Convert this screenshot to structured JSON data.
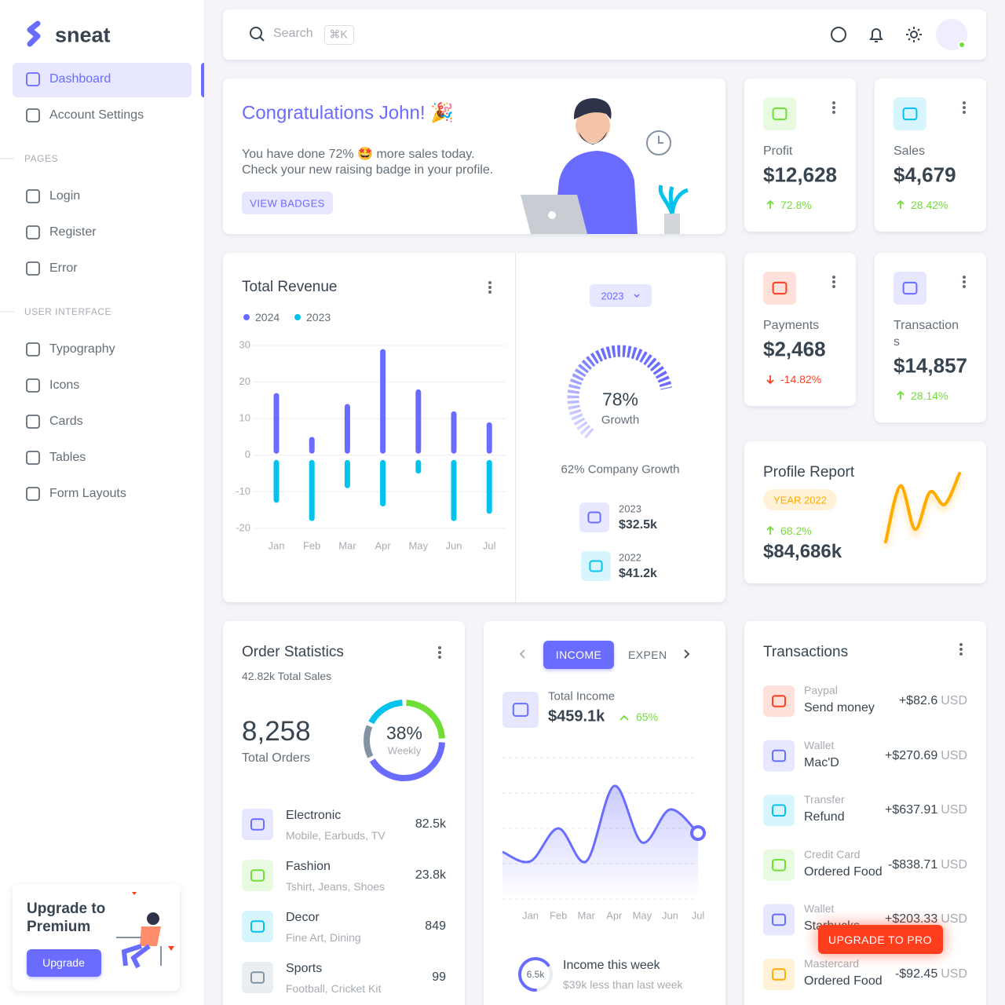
{
  "brand": "sneat",
  "menu": {
    "main": [
      "Dashboard",
      "Account Settings"
    ],
    "pages_header": "PAGES",
    "pages": [
      "Login",
      "Register",
      "Error"
    ],
    "ui_header": "USER INTERFACE",
    "ui": [
      "Typography",
      "Icons",
      "Cards",
      "Tables",
      "Form Layouts"
    ]
  },
  "upgrade": {
    "title": "Upgrade to Premium",
    "button": "Upgrade"
  },
  "search": {
    "placeholder": "Search",
    "shortcut": "⌘K"
  },
  "welcome": {
    "title": "Congratulations John! 🎉",
    "line1": "You have done 72% 🤩 more sales today.",
    "line2": "Check your new raising badge in your profile.",
    "button": "VIEW BADGES"
  },
  "stats": [
    {
      "label": "Profit",
      "value": "$12,628",
      "change": "72.8%"
    },
    {
      "label": "Sales",
      "value": "$4,679",
      "change": "28.42%"
    },
    {
      "label": "Payments",
      "value": "$2,468",
      "change": "-14.82%"
    },
    {
      "label": "Transactions",
      "value": "$14,857",
      "change": "28.14%"
    }
  ],
  "revenue": {
    "type": "bar",
    "title": "Total Revenue",
    "categories": [
      "Jan",
      "Feb",
      "Mar",
      "Apr",
      "May",
      "Jun",
      "Jul"
    ],
    "series": [
      {
        "name": "2024",
        "color": "#696cff",
        "values": [
          17,
          5,
          14,
          29,
          18,
          12,
          9
        ]
      },
      {
        "name": "2023",
        "color": "#03c3ec",
        "values": [
          -13,
          -18,
          -9,
          -14,
          -5,
          -18,
          -16
        ]
      }
    ],
    "ylim": [
      -20,
      30
    ],
    "yticks": [
      -20,
      -10,
      0,
      10,
      20,
      30
    ],
    "grid": true
  },
  "growth": {
    "year": "2023",
    "value": 78,
    "value_label": "78%",
    "label": "Growth",
    "caption": "62% Company Growth",
    "items": [
      {
        "year": "2023",
        "amount": "$32.5k"
      },
      {
        "year": "2022",
        "amount": "$41.2k"
      }
    ]
  },
  "profile_report": {
    "title": "Profile Report",
    "badge": "YEAR 2022",
    "change": "68.2%",
    "value": "$84,686k",
    "sparkline": {
      "type": "line",
      "values": [
        0,
        9,
        2,
        8,
        6,
        11
      ],
      "ylim": [
        0,
        12
      ],
      "color": "#ffab00"
    }
  },
  "order_stats": {
    "title": "Order Statistics",
    "subtitle": "42.82k Total Sales",
    "total": "8,258",
    "total_label": "Total Orders",
    "donut": {
      "type": "pie",
      "percent": "38%",
      "label": "Weekly",
      "values": [
        25,
        42,
        15,
        18
      ],
      "colors": [
        "#71dd37",
        "#696cff",
        "#8592a3",
        "#03c3ec"
      ]
    },
    "items": [
      {
        "name": "Electronic",
        "desc": "Mobile, Earbuds, TV",
        "value": "82.5k"
      },
      {
        "name": "Fashion",
        "desc": "Tshirt, Jeans, Shoes",
        "value": "23.8k"
      },
      {
        "name": "Decor",
        "desc": "Fine Art, Dining",
        "value": "849"
      },
      {
        "name": "Sports",
        "desc": "Football, Cricket Kit",
        "value": "99"
      }
    ]
  },
  "income": {
    "tabs": [
      "INCOME",
      "EXPENSES"
    ],
    "title": "Total Income",
    "value": "$459.1k",
    "change": "65%",
    "chart": {
      "type": "line",
      "categories": [
        null,
        "Jan",
        "Feb",
        "Mar",
        "Apr",
        "May",
        "Jun",
        "Jul"
      ],
      "values": [
        20,
        18,
        25,
        18,
        34,
        22,
        29,
        24
      ],
      "color": "#696cff",
      "ylim": [
        10,
        40
      ],
      "yticks": [
        10,
        17.5,
        25,
        32.5,
        40
      ]
    },
    "week": {
      "value": "6.5k",
      "percent": 65,
      "title": "Income this week",
      "subtitle": "$39k less than last week"
    }
  },
  "transactions": {
    "title": "Transactions",
    "items": [
      {
        "type": "Paypal",
        "desc": "Send money",
        "amount": "+$82.6",
        "currency": "USD"
      },
      {
        "type": "Wallet",
        "desc": "Mac'D",
        "amount": "+$270.69",
        "currency": "USD"
      },
      {
        "type": "Transfer",
        "desc": "Refund",
        "amount": "+$637.91",
        "currency": "USD"
      },
      {
        "type": "Credit Card",
        "desc": "Ordered Food",
        "amount": "-$838.71",
        "currency": "USD"
      },
      {
        "type": "Wallet",
        "desc": "Starbucks",
        "amount": "+$203.33",
        "currency": "USD"
      },
      {
        "type": "Mastercard",
        "desc": "Ordered Food",
        "amount": "-$92.45",
        "currency": "USD"
      }
    ]
  },
  "upgrade_pro": "UPGRADE TO PRO"
}
